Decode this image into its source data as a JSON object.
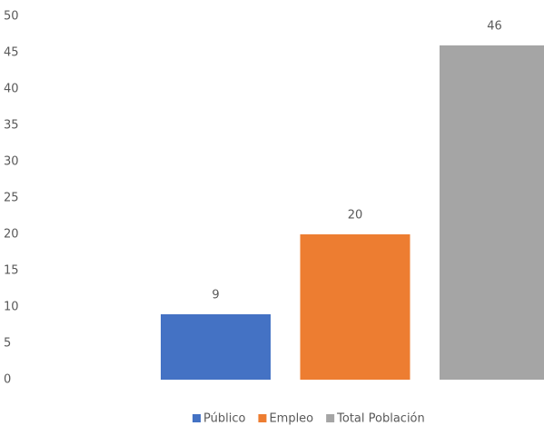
{
  "chart_data": {
    "type": "bar",
    "categories": [
      null
    ],
    "series": [
      {
        "name": "Público",
        "color": "#4472c4",
        "values": [
          9
        ]
      },
      {
        "name": "Empleo",
        "color": "#ed7d31",
        "values": [
          20
        ]
      },
      {
        "name": "Total Población",
        "color": "#a5a5a5",
        "values": [
          46
        ]
      }
    ],
    "ylim": [
      0,
      50
    ],
    "yticks": [
      0,
      5,
      10,
      15,
      20,
      25,
      30,
      35,
      40,
      45,
      50
    ],
    "grid": false,
    "legend": "bottom"
  }
}
